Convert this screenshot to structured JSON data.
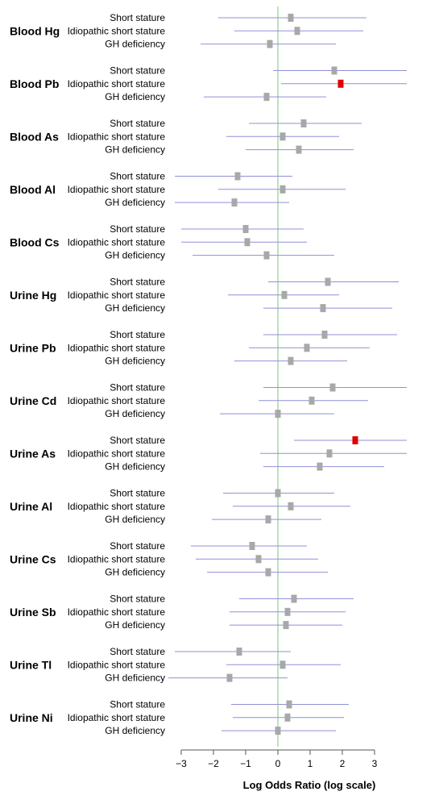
{
  "chart_data": {
    "type": "forest",
    "xlabel": "Log Odds Ratio (log scale)",
    "xlim": [
      -3,
      3
    ],
    "x_ticks": [
      -3,
      -2,
      -1,
      0,
      1,
      2,
      3
    ],
    "x_tick_labels": [
      "−3",
      "−2",
      "−1",
      "0",
      "1",
      "2",
      "3"
    ],
    "reference_line": 0,
    "colors": {
      "point": "#a8a8a8",
      "point_significant": "#e00000",
      "ci_line": "#9090d8",
      "reference_line": "#90d090",
      "axis": "#555555"
    },
    "row_labels": [
      "Short stature",
      "Idiopathic short stature",
      "GH deficiency"
    ],
    "groups": [
      {
        "name": "Blood Hg",
        "rows": [
          {
            "est": 0.4,
            "lo": -1.85,
            "hi": 2.75,
            "significant": false
          },
          {
            "est": 0.6,
            "lo": -1.35,
            "hi": 2.65,
            "significant": false
          },
          {
            "est": -0.25,
            "lo": -2.4,
            "hi": 1.8,
            "significant": false
          }
        ]
      },
      {
        "name": "Blood Pb",
        "rows": [
          {
            "est": 1.75,
            "lo": -0.15,
            "hi": 4.0,
            "significant": false
          },
          {
            "est": 1.95,
            "lo": 0.1,
            "hi": 4.0,
            "significant": true
          },
          {
            "est": -0.35,
            "lo": -2.3,
            "hi": 1.5,
            "significant": false
          }
        ]
      },
      {
        "name": "Blood As",
        "rows": [
          {
            "est": 0.8,
            "lo": -0.9,
            "hi": 2.6,
            "significant": false
          },
          {
            "est": 0.15,
            "lo": -1.6,
            "hi": 1.9,
            "significant": false
          },
          {
            "est": 0.65,
            "lo": -1.0,
            "hi": 2.35,
            "significant": false
          }
        ]
      },
      {
        "name": "Blood Al",
        "rows": [
          {
            "est": -1.25,
            "lo": -3.2,
            "hi": 0.45,
            "significant": false
          },
          {
            "est": 0.15,
            "lo": -1.85,
            "hi": 2.1,
            "significant": false
          },
          {
            "est": -1.35,
            "lo": -3.2,
            "hi": 0.35,
            "significant": false
          }
        ]
      },
      {
        "name": "Blood Cs",
        "rows": [
          {
            "est": -1.0,
            "lo": -3.0,
            "hi": 0.8,
            "significant": false
          },
          {
            "est": -0.95,
            "lo": -3.0,
            "hi": 0.9,
            "significant": false
          },
          {
            "est": -0.35,
            "lo": -2.65,
            "hi": 1.75,
            "significant": false
          }
        ]
      },
      {
        "name": "Urine Hg",
        "rows": [
          {
            "est": 1.55,
            "lo": -0.3,
            "hi": 3.75,
            "significant": false
          },
          {
            "est": 0.2,
            "lo": -1.55,
            "hi": 1.9,
            "significant": false
          },
          {
            "est": 1.4,
            "lo": -0.45,
            "hi": 3.55,
            "significant": false
          }
        ]
      },
      {
        "name": "Urine Pb",
        "rows": [
          {
            "est": 1.45,
            "lo": -0.45,
            "hi": 3.7,
            "significant": false
          },
          {
            "est": 0.9,
            "lo": -0.9,
            "hi": 2.85,
            "significant": false
          },
          {
            "est": 0.4,
            "lo": -1.35,
            "hi": 2.15,
            "significant": false
          }
        ]
      },
      {
        "name": "Urine Cd",
        "rows": [
          {
            "est": 1.7,
            "lo": -0.45,
            "hi": 4.0,
            "significant": false
          },
          {
            "est": 1.05,
            "lo": -0.6,
            "hi": 2.8,
            "significant": false
          },
          {
            "est": 0.0,
            "lo": -1.8,
            "hi": 1.75,
            "significant": false
          }
        ]
      },
      {
        "name": "Urine As",
        "rows": [
          {
            "est": 2.4,
            "lo": 0.5,
            "hi": 4.0,
            "significant": true
          },
          {
            "est": 1.6,
            "lo": -0.55,
            "hi": 4.0,
            "significant": false
          },
          {
            "est": 1.3,
            "lo": -0.45,
            "hi": 3.3,
            "significant": false
          }
        ]
      },
      {
        "name": "Urine Al",
        "rows": [
          {
            "est": 0.0,
            "lo": -1.7,
            "hi": 1.75,
            "significant": false
          },
          {
            "est": 0.4,
            "lo": -1.4,
            "hi": 2.25,
            "significant": false
          },
          {
            "est": -0.3,
            "lo": -2.05,
            "hi": 1.35,
            "significant": false
          }
        ]
      },
      {
        "name": "Urine Cs",
        "rows": [
          {
            "est": -0.8,
            "lo": -2.7,
            "hi": 0.9,
            "significant": false
          },
          {
            "est": -0.6,
            "lo": -2.55,
            "hi": 1.25,
            "significant": false
          },
          {
            "est": -0.3,
            "lo": -2.2,
            "hi": 1.55,
            "significant": false
          }
        ]
      },
      {
        "name": "Urine Sb",
        "rows": [
          {
            "est": 0.5,
            "lo": -1.2,
            "hi": 2.35,
            "significant": false
          },
          {
            "est": 0.3,
            "lo": -1.5,
            "hi": 2.1,
            "significant": false
          },
          {
            "est": 0.25,
            "lo": -1.5,
            "hi": 2.0,
            "significant": false
          }
        ]
      },
      {
        "name": "Urine Tl",
        "rows": [
          {
            "est": -1.2,
            "lo": -3.2,
            "hi": 0.4,
            "significant": false
          },
          {
            "est": 0.15,
            "lo": -1.6,
            "hi": 1.95,
            "significant": false
          },
          {
            "est": -1.5,
            "lo": -3.4,
            "hi": 0.3,
            "significant": false
          }
        ]
      },
      {
        "name": "Urine Ni",
        "rows": [
          {
            "est": 0.35,
            "lo": -1.45,
            "hi": 2.2,
            "significant": false
          },
          {
            "est": 0.3,
            "lo": -1.4,
            "hi": 2.05,
            "significant": false
          },
          {
            "est": 0.0,
            "lo": -1.75,
            "hi": 1.8,
            "significant": false
          }
        ]
      }
    ]
  }
}
